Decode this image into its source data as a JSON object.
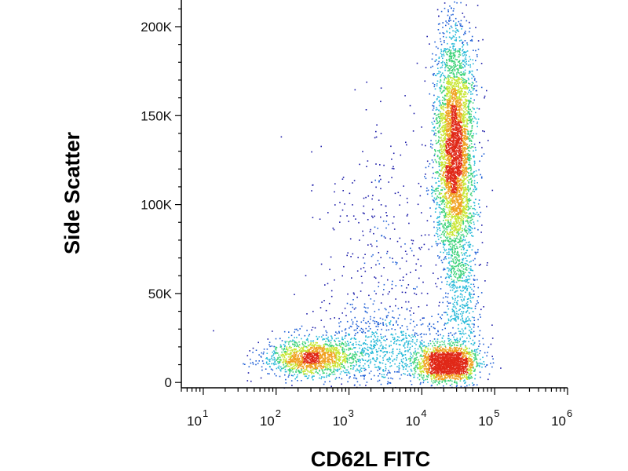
{
  "chart_data": {
    "type": "scatter",
    "subtype": "flow-cytometry-density-dot-plot",
    "title": "",
    "xlabel": "CD62L FITC",
    "ylabel": "Side Scatter",
    "xscale": "log",
    "yscale": "linear",
    "xlim": [
      5,
      1000000
    ],
    "ylim": [
      -3000,
      215000
    ],
    "x_ticks": [
      {
        "value": 10,
        "base": "10",
        "exp": "1"
      },
      {
        "value": 100,
        "base": "10",
        "exp": "2"
      },
      {
        "value": 1000,
        "base": "10",
        "exp": "3"
      },
      {
        "value": 10000,
        "base": "10",
        "exp": "4"
      },
      {
        "value": 100000,
        "base": "10",
        "exp": "5"
      },
      {
        "value": 1000000,
        "base": "10",
        "exp": "6"
      }
    ],
    "y_ticks": [
      {
        "value": 0,
        "label": "0"
      },
      {
        "value": 50000,
        "label": "50K"
      },
      {
        "value": 100000,
        "label": "100K"
      },
      {
        "value": 150000,
        "label": "150K"
      },
      {
        "value": 200000,
        "label": "200K"
      }
    ],
    "grid": false,
    "legend": "none",
    "density_colormap": [
      "#1a1aa8",
      "#1f5fd6",
      "#25b8d8",
      "#3fd37a",
      "#c8e632",
      "#f0a020",
      "#e02818"
    ],
    "populations": [
      {
        "x_center": 28000,
        "y_center": 130000,
        "x_spread_log10": 0.13,
        "y_spread": 34000,
        "weight": 0.46
      },
      {
        "x_center": 22000,
        "y_center": 11000,
        "x_spread_log10": 0.2,
        "y_spread": 5000,
        "weight": 0.2
      },
      {
        "x_center": 280,
        "y_center": 14000,
        "x_spread_log10": 0.3,
        "y_spread": 5000,
        "weight": 0.15
      },
      {
        "x_center": 3000,
        "y_center": 18000,
        "x_spread_log10": 0.55,
        "y_spread": 10000,
        "weight": 0.09
      },
      {
        "x_center": 3000,
        "y_center": 60000,
        "x_spread_log10": 0.5,
        "y_spread": 40000,
        "weight": 0.05
      },
      {
        "x_center": 35000,
        "y_center": 45000,
        "x_spread_log10": 0.12,
        "y_spread": 25000,
        "weight": 0.05
      }
    ]
  }
}
